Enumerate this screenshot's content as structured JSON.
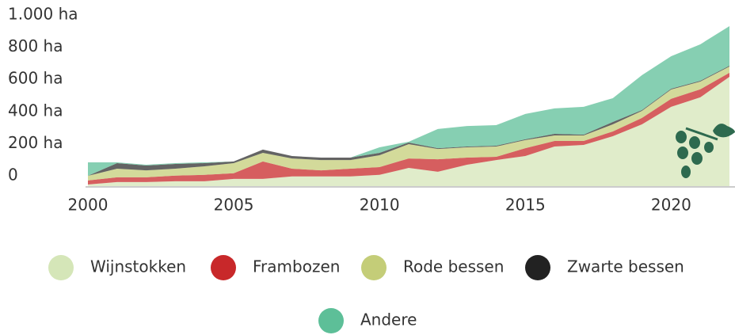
{
  "chart_data": {
    "type": "area",
    "stacked": true,
    "x": [
      2000,
      2001,
      2002,
      2003,
      2004,
      2005,
      2006,
      2007,
      2008,
      2009,
      2010,
      2011,
      2012,
      2013,
      2014,
      2015,
      2016,
      2017,
      2018,
      2019,
      2020,
      2021,
      2022
    ],
    "xlim": [
      2000,
      2022
    ],
    "xticks": [
      2000,
      2005,
      2010,
      2015,
      2020
    ],
    "ylim": [
      0,
      1000
    ],
    "yticks": [
      0,
      {
        "value": 200,
        "label": "200 ha"
      },
      {
        "value": 400,
        "label": "400 ha"
      },
      {
        "value": 600,
        "label": "600 ha"
      },
      {
        "value": 800,
        "label": "800 ha"
      },
      {
        "value": 1000,
        "label": "1.000 ha"
      }
    ],
    "grid": false,
    "series": [
      {
        "name": "Wijnstokken",
        "color": "#d5e6b8",
        "values": [
          15,
          30,
          30,
          35,
          35,
          50,
          50,
          65,
          65,
          65,
          75,
          118,
          94,
          138,
          167,
          192,
          251,
          261,
          315,
          389,
          498,
          557,
          685
        ]
      },
      {
        "name": "Frambozen",
        "color": "#c8282a",
        "values": [
          25,
          30,
          30,
          35,
          40,
          35,
          108,
          48,
          38,
          48,
          48,
          59,
          78,
          44,
          20,
          49,
          35,
          25,
          30,
          40,
          50,
          50,
          25
        ]
      },
      {
        "name": "Rode bessen",
        "color": "#c4cd78",
        "values": [
          29,
          53,
          43,
          43,
          53,
          63,
          54,
          64,
          64,
          54,
          74,
          89,
          64,
          64,
          64,
          50,
          34,
          34,
          44,
          44,
          58,
          48,
          39
        ]
      },
      {
        "name": "Zwarte bessen",
        "color": "#222222",
        "values": [
          0,
          35,
          30,
          30,
          20,
          10,
          20,
          15,
          15,
          15,
          15,
          10,
          5,
          5,
          5,
          5,
          10,
          5,
          15,
          5,
          5,
          5,
          5
        ]
      },
      {
        "name": "Andere",
        "color": "#5dbf98",
        "values": [
          84,
          5,
          5,
          5,
          5,
          0,
          0,
          0,
          0,
          0,
          34,
          5,
          119,
          128,
          128,
          158,
          158,
          173,
          148,
          217,
          202,
          227,
          246
        ]
      }
    ]
  }
}
